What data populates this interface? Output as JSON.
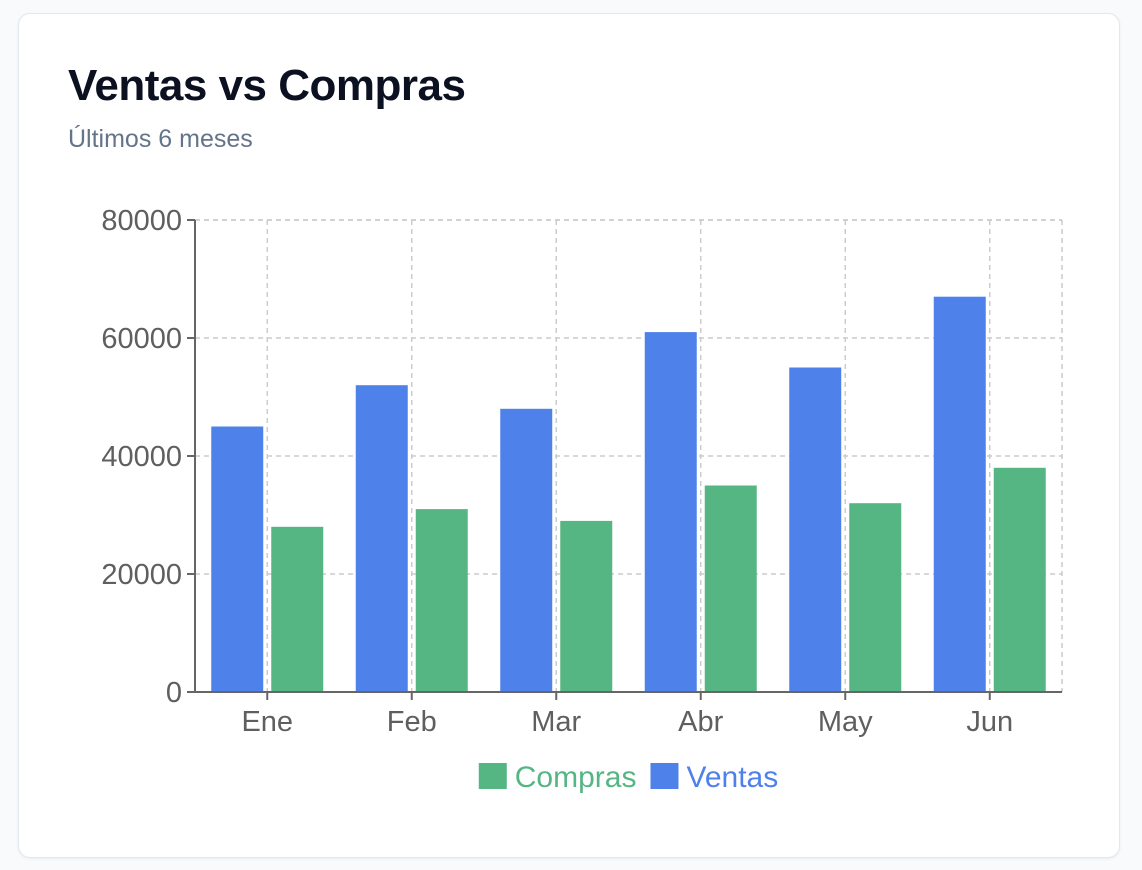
{
  "card": {
    "title": "Ventas vs Compras",
    "subtitle": "Últimos 6 meses"
  },
  "chart_data": {
    "type": "bar",
    "categories": [
      "Ene",
      "Feb",
      "Mar",
      "Abr",
      "May",
      "Jun"
    ],
    "series": [
      {
        "name": "Ventas",
        "color": "#4f81ea",
        "values": [
          45000,
          52000,
          48000,
          61000,
          55000,
          67000
        ]
      },
      {
        "name": "Compras",
        "color": "#55b684",
        "values": [
          28000,
          31000,
          29000,
          35000,
          32000,
          38000
        ]
      }
    ],
    "yticks": [
      0,
      20000,
      40000,
      60000,
      80000
    ],
    "ylim": [
      0,
      80000
    ],
    "grid": true,
    "legend": {
      "position": "bottom",
      "order": [
        "Compras",
        "Ventas"
      ]
    }
  }
}
